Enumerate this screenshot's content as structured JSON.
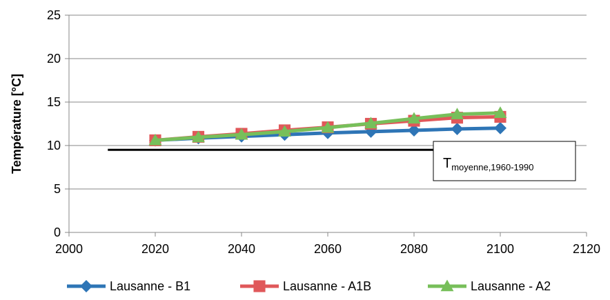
{
  "chart_data": {
    "type": "line",
    "title": "",
    "xlabel": "",
    "ylabel": "Température [°C]",
    "xlim": [
      2000,
      2120
    ],
    "ylim": [
      0,
      25
    ],
    "x_ticks": [
      2000,
      2020,
      2040,
      2060,
      2080,
      2100,
      2120
    ],
    "y_ticks": [
      0,
      5,
      10,
      15,
      20,
      25
    ],
    "grid": "horizontal",
    "legend_position": "bottom",
    "x": [
      2020,
      2030,
      2040,
      2050,
      2060,
      2070,
      2080,
      2090,
      2100
    ],
    "series": [
      {
        "name": "Lausanne - B1",
        "marker": "diamond",
        "color": "#2e75b6",
        "values": [
          10.6,
          10.85,
          11.05,
          11.25,
          11.45,
          11.6,
          11.75,
          11.9,
          12.0
        ]
      },
      {
        "name": "Lausanne - A1B",
        "marker": "square",
        "color": "#e0585a",
        "values": [
          10.6,
          11.0,
          11.35,
          11.75,
          12.1,
          12.5,
          12.85,
          13.2,
          13.3
        ]
      },
      {
        "name": "Lausanne - A2",
        "marker": "triangle",
        "color": "#77bf5a",
        "values": [
          10.6,
          10.95,
          11.25,
          11.6,
          12.05,
          12.55,
          13.1,
          13.6,
          13.75
        ]
      }
    ],
    "reference_line": {
      "value": 9.5,
      "x_start": 2009,
      "x_end": 2100,
      "color": "#000000"
    },
    "annotation": {
      "main": "T",
      "subscript": "moyenne,1960-1990"
    }
  }
}
